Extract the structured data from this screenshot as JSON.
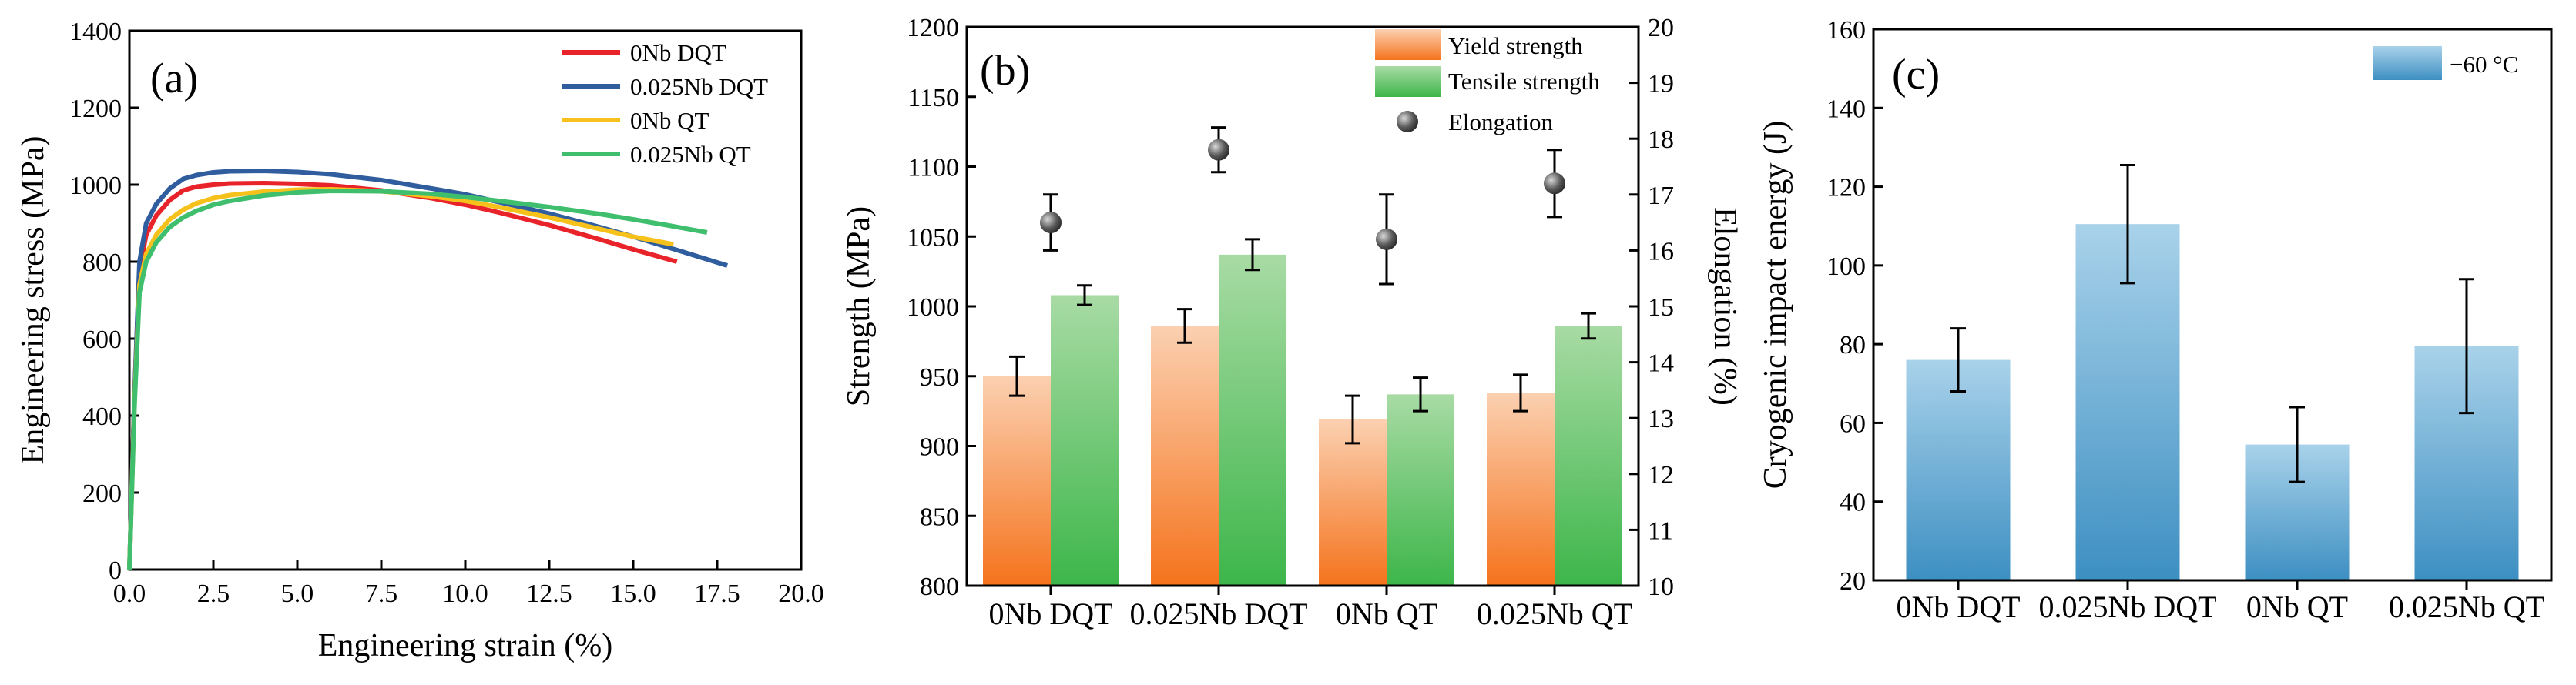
{
  "chart_data": [
    {
      "type": "line",
      "panel_label": "(a)",
      "xlabel": "Engineering strain (%)",
      "ylabel": "Engineering stress (MPa)",
      "xlim": [
        0,
        20
      ],
      "ylim": [
        0,
        1400
      ],
      "xticks": [
        "0.0",
        "2.5",
        "5.0",
        "7.5",
        "10.0",
        "12.5",
        "15.0",
        "17.5",
        "20.0"
      ],
      "yticks": [
        "0",
        "200",
        "400",
        "600",
        "800",
        "1000",
        "1200",
        "1400"
      ],
      "legend_position": "top-right",
      "series": [
        {
          "name": "0Nb DQT",
          "color": "#e8232a",
          "x": [
            0,
            0.15,
            0.3,
            0.5,
            0.8,
            1.2,
            1.6,
            2.0,
            2.5,
            3.0,
            4.0,
            5.0,
            6.0,
            7.5,
            9.0,
            10.0,
            11.0,
            12.5,
            14.0,
            15.0,
            16.3
          ],
          "y": [
            0,
            450,
            780,
            870,
            920,
            960,
            985,
            995,
            1000,
            1003,
            1004,
            1002,
            998,
            985,
            965,
            948,
            928,
            895,
            858,
            832,
            800
          ]
        },
        {
          "name": "0.025Nb DQT",
          "color": "#2f5d9e",
          "x": [
            0,
            0.15,
            0.3,
            0.5,
            0.8,
            1.2,
            1.6,
            2.0,
            2.5,
            3.0,
            4.0,
            5.0,
            6.0,
            7.5,
            9.0,
            10.0,
            11.0,
            12.5,
            14.0,
            15.0,
            16.5,
            17.8
          ],
          "y": [
            0,
            450,
            800,
            900,
            950,
            990,
            1015,
            1025,
            1032,
            1035,
            1036,
            1033,
            1027,
            1012,
            990,
            975,
            955,
            925,
            890,
            865,
            825,
            790
          ]
        },
        {
          "name": "0Nb QT",
          "color": "#f7c11c",
          "x": [
            0,
            0.15,
            0.3,
            0.5,
            0.8,
            1.2,
            1.6,
            2.0,
            2.5,
            3.0,
            4.0,
            5.0,
            6.0,
            7.5,
            9.0,
            10.0,
            11.0,
            12.5,
            14.0,
            15.0,
            16.2
          ],
          "y": [
            0,
            430,
            740,
            820,
            870,
            910,
            935,
            952,
            965,
            973,
            982,
            987,
            988,
            983,
            970,
            958,
            942,
            915,
            885,
            865,
            845
          ]
        },
        {
          "name": "0.025Nb QT",
          "color": "#3fbf6e",
          "x": [
            0,
            0.15,
            0.3,
            0.5,
            0.8,
            1.2,
            1.6,
            2.0,
            2.5,
            3.0,
            4.0,
            5.0,
            6.0,
            7.5,
            9.0,
            10.0,
            11.0,
            12.5,
            14.0,
            15.0,
            16.0,
            17.2
          ],
          "y": [
            0,
            420,
            720,
            800,
            850,
            890,
            915,
            932,
            948,
            958,
            972,
            980,
            984,
            983,
            976,
            968,
            958,
            942,
            924,
            910,
            895,
            876
          ]
        }
      ]
    },
    {
      "type": "bar",
      "panel_label": "(b)",
      "categories": [
        "0Nb DQT",
        "0.025Nb DQT",
        "0Nb QT",
        "0.025Nb QT"
      ],
      "ylabel": "Strength (MPa)",
      "y2label": "Elongation (%)",
      "ylim": [
        800,
        1200
      ],
      "y2lim": [
        10,
        20
      ],
      "yticks": [
        "800",
        "850",
        "900",
        "950",
        "1000",
        "1050",
        "1100",
        "1150",
        "1200"
      ],
      "y2ticks": [
        "10",
        "11",
        "12",
        "13",
        "14",
        "15",
        "16",
        "17",
        "18",
        "19",
        "20"
      ],
      "legend_position": "top-right",
      "series": [
        {
          "name": "Yield strength",
          "color_top": "#fbd0b1",
          "color_bottom": "#f5731c",
          "values": [
            950,
            986,
            919,
            938
          ],
          "errors": [
            14,
            12,
            17,
            13
          ]
        },
        {
          "name": "Tensile strength",
          "color_top": "#a8dba4",
          "color_bottom": "#3db64a",
          "values": [
            1008,
            1037,
            937,
            986
          ],
          "errors": [
            7,
            11,
            12,
            9
          ]
        },
        {
          "name": "Elongation",
          "axis": "right",
          "marker_color": "#555555",
          "values": [
            16.5,
            17.8,
            16.2,
            17.2
          ],
          "errors": [
            0.5,
            0.4,
            0.8,
            0.6
          ]
        }
      ]
    },
    {
      "type": "bar",
      "panel_label": "(c)",
      "categories": [
        "0Nb DQT",
        "0.025Nb DQT",
        "0Nb QT",
        "0.025Nb QT"
      ],
      "ylabel": "Cryogenic impact energy (J)",
      "ylim": [
        20,
        160
      ],
      "yticks": [
        "20",
        "40",
        "60",
        "80",
        "100",
        "120",
        "140",
        "160"
      ],
      "legend_position": "top-right",
      "series": [
        {
          "name": "−60 °C",
          "color_top": "#a9d2ea",
          "color_bottom": "#3d8fc2",
          "values": [
            76,
            110.5,
            54.5,
            79.5
          ],
          "errors": [
            8,
            15,
            9.5,
            17
          ]
        }
      ]
    }
  ]
}
